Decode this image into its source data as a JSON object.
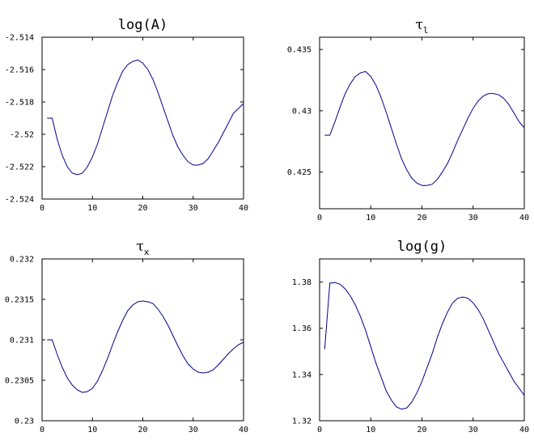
{
  "chart_data": [
    {
      "type": "line",
      "title": "log(A)",
      "title_kind": "text",
      "xlim": [
        0,
        40
      ],
      "ylim": [
        -2.524,
        -2.514
      ],
      "x_ticks": [
        0,
        10,
        20,
        30,
        40
      ],
      "x_tick_labels": [
        "0",
        "10",
        "20",
        "30",
        "40"
      ],
      "y_ticks": [
        -2.524,
        -2.522,
        -2.52,
        -2.518,
        -2.516,
        -2.514
      ],
      "y_tick_labels": [
        "-2.524",
        "-2.522",
        "-2.52",
        "-2.518",
        "-2.516",
        "-2.514"
      ],
      "grid": false,
      "series": [
        {
          "color": "#00008b",
          "x": [
            1,
            2,
            3,
            4,
            5,
            6,
            7,
            8,
            9,
            10,
            11,
            12,
            13,
            14,
            15,
            16,
            17,
            18,
            19,
            20,
            21,
            22,
            23,
            24,
            25,
            26,
            27,
            28,
            29,
            30,
            31,
            32,
            33,
            34,
            35,
            36,
            37,
            38,
            39,
            40
          ],
          "y": [
            -2.519,
            -2.519,
            -2.5203,
            -2.5213,
            -2.522,
            -2.5224,
            -2.5225,
            -2.5224,
            -2.522,
            -2.5214,
            -2.5206,
            -2.5196,
            -2.5186,
            -2.5176,
            -2.5168,
            -2.5161,
            -2.5157,
            -2.5155,
            -2.5154,
            -2.5156,
            -2.516,
            -2.5166,
            -2.5174,
            -2.5183,
            -2.5192,
            -2.5201,
            -2.5208,
            -2.5213,
            -2.5217,
            -2.5219,
            -2.5219,
            -2.5218,
            -2.5215,
            -2.521,
            -2.5205,
            -2.5199,
            -2.5193,
            -2.5187,
            -2.5184,
            -2.5181
          ]
        }
      ]
    },
    {
      "type": "line",
      "title": "τ",
      "title_subscript": "l",
      "title_kind": "greek",
      "xlim": [
        0,
        40
      ],
      "ylim": [
        0.422,
        0.436
      ],
      "x_ticks": [
        0,
        10,
        20,
        30,
        40
      ],
      "x_tick_labels": [
        "0",
        "10",
        "20",
        "30",
        "40"
      ],
      "y_ticks": [
        0.425,
        0.43,
        0.435
      ],
      "y_tick_labels": [
        "0.425",
        "0.43",
        "0.435"
      ],
      "grid": false,
      "series": [
        {
          "color": "#00008b",
          "x": [
            1,
            2,
            3,
            4,
            5,
            6,
            7,
            8,
            9,
            10,
            11,
            12,
            13,
            14,
            15,
            16,
            17,
            18,
            19,
            20,
            21,
            22,
            23,
            24,
            25,
            26,
            27,
            28,
            29,
            30,
            31,
            32,
            33,
            34,
            35,
            36,
            37,
            38,
            39,
            40
          ],
          "y": [
            0.428,
            0.428,
            0.4291,
            0.4303,
            0.4314,
            0.4322,
            0.4328,
            0.4331,
            0.4332,
            0.4328,
            0.4321,
            0.4311,
            0.4299,
            0.4286,
            0.4273,
            0.4261,
            0.4252,
            0.4245,
            0.4241,
            0.4239,
            0.4239,
            0.424,
            0.4244,
            0.425,
            0.4257,
            0.4266,
            0.4276,
            0.4285,
            0.4294,
            0.4302,
            0.4308,
            0.4312,
            0.4314,
            0.4314,
            0.4313,
            0.431,
            0.4305,
            0.4298,
            0.4291,
            0.4286
          ]
        }
      ]
    },
    {
      "type": "line",
      "title": "τ",
      "title_subscript": "x",
      "title_kind": "greek",
      "xlim": [
        0,
        40
      ],
      "ylim": [
        0.23,
        0.232
      ],
      "x_ticks": [
        0,
        10,
        20,
        30,
        40
      ],
      "x_tick_labels": [
        "0",
        "10",
        "20",
        "30",
        "40"
      ],
      "y_ticks": [
        0.23,
        0.2305,
        0.231,
        0.2315,
        0.232
      ],
      "y_tick_labels": [
        "0.23",
        "0.2305",
        "0.231",
        "0.2315",
        "0.232"
      ],
      "grid": false,
      "series": [
        {
          "color": "#00008b",
          "x": [
            1,
            2,
            3,
            4,
            5,
            6,
            7,
            8,
            9,
            10,
            11,
            12,
            13,
            14,
            15,
            16,
            17,
            18,
            19,
            20,
            21,
            22,
            23,
            24,
            25,
            26,
            27,
            28,
            29,
            30,
            31,
            32,
            33,
            34,
            35,
            36,
            37,
            38,
            39,
            40
          ],
          "y": [
            0.231,
            0.231,
            0.23082,
            0.23066,
            0.23053,
            0.23044,
            0.23038,
            0.23035,
            0.23036,
            0.2304,
            0.23049,
            0.23062,
            0.23077,
            0.23094,
            0.2311,
            0.23124,
            0.23136,
            0.23143,
            0.23147,
            0.23148,
            0.23147,
            0.23145,
            0.23138,
            0.23129,
            0.23118,
            0.23105,
            0.23092,
            0.2308,
            0.2307,
            0.23064,
            0.2306,
            0.23059,
            0.2306,
            0.23063,
            0.23069,
            0.23076,
            0.23083,
            0.23089,
            0.23094,
            0.23097
          ]
        }
      ]
    },
    {
      "type": "line",
      "title": "log(g)",
      "title_kind": "text",
      "xlim": [
        0,
        40
      ],
      "ylim": [
        1.32,
        1.39
      ],
      "x_ticks": [
        0,
        10,
        20,
        30,
        40
      ],
      "x_tick_labels": [
        "0",
        "10",
        "20",
        "30",
        "40"
      ],
      "y_ticks": [
        1.32,
        1.34,
        1.36,
        1.38
      ],
      "y_tick_labels": [
        "1.32",
        "1.34",
        "1.36",
        "1.38"
      ],
      "grid": false,
      "series": [
        {
          "color": "#00008b",
          "x": [
            1,
            2,
            3,
            4,
            5,
            6,
            7,
            8,
            9,
            10,
            11,
            12,
            13,
            14,
            15,
            16,
            17,
            18,
            19,
            20,
            21,
            22,
            23,
            24,
            25,
            26,
            27,
            28,
            29,
            30,
            31,
            32,
            33,
            34,
            35,
            36,
            37,
            38,
            39,
            40
          ],
          "y": [
            1.351,
            1.3795,
            1.3798,
            1.379,
            1.377,
            1.374,
            1.37,
            1.365,
            1.359,
            1.352,
            1.345,
            1.339,
            1.333,
            1.329,
            1.326,
            1.325,
            1.3255,
            1.328,
            1.332,
            1.337,
            1.343,
            1.349,
            1.356,
            1.362,
            1.367,
            1.371,
            1.373,
            1.3735,
            1.373,
            1.371,
            1.368,
            1.364,
            1.359,
            1.354,
            1.349,
            1.345,
            1.341,
            1.337,
            1.334,
            1.331
          ]
        }
      ]
    }
  ]
}
